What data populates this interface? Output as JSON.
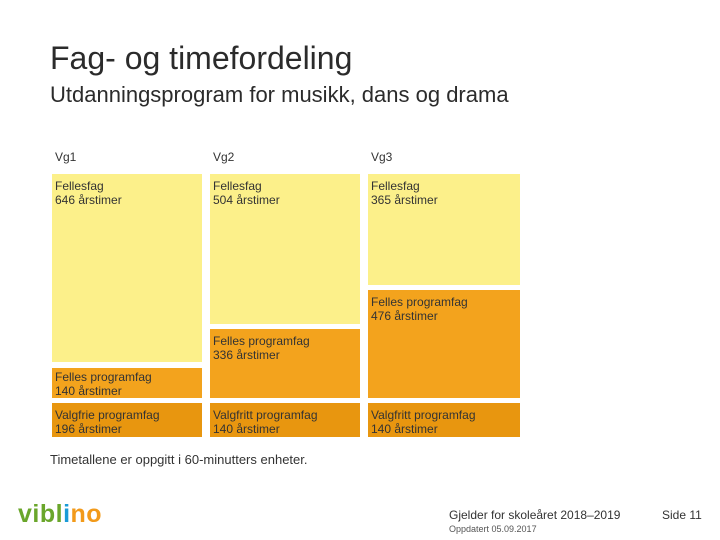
{
  "header": {
    "title": "Fag- og timefordeling",
    "subtitle": "Utdanningsprogram for musikk, dans og drama"
  },
  "columns": [
    {
      "heading": "Vg1",
      "fellesfag": {
        "label": "Fellesfag",
        "hours": "646 årstimer"
      },
      "felles_programfag": {
        "label": "Felles programfag",
        "hours": "140 årstimer"
      },
      "valgfrie": {
        "label": "Valgfrie programfag",
        "hours": "196 årstimer"
      }
    },
    {
      "heading": "Vg2",
      "fellesfag": {
        "label": "Fellesfag",
        "hours": "504 årstimer"
      },
      "felles_programfag": {
        "label": "Felles programfag",
        "hours": "336 årstimer"
      },
      "valgfrie": {
        "label": "Valgfritt programfag",
        "hours": "140 årstimer"
      }
    },
    {
      "heading": "Vg3",
      "fellesfag": {
        "label": "Fellesfag",
        "hours": "365 årstimer"
      },
      "felles_programfag": {
        "label": "Felles programfag",
        "hours": "476 årstimer"
      },
      "valgfrie": {
        "label": "Valgfritt programfag",
        "hours": "140 årstimer"
      }
    }
  ],
  "note": "Timetallene er oppgitt i 60-minutters enheter.",
  "footer": {
    "logo_parts": [
      "vibl",
      "i",
      "no"
    ],
    "school_year": "Gjelder for skoleåret 2018–2019",
    "updated": "Oppdatert 05.09.2017",
    "page": "Side 11"
  },
  "colors": {
    "fellesfag": "#fcf08a",
    "felles_programfag": "#f3a31d",
    "valgfrie": "#e8960f"
  }
}
